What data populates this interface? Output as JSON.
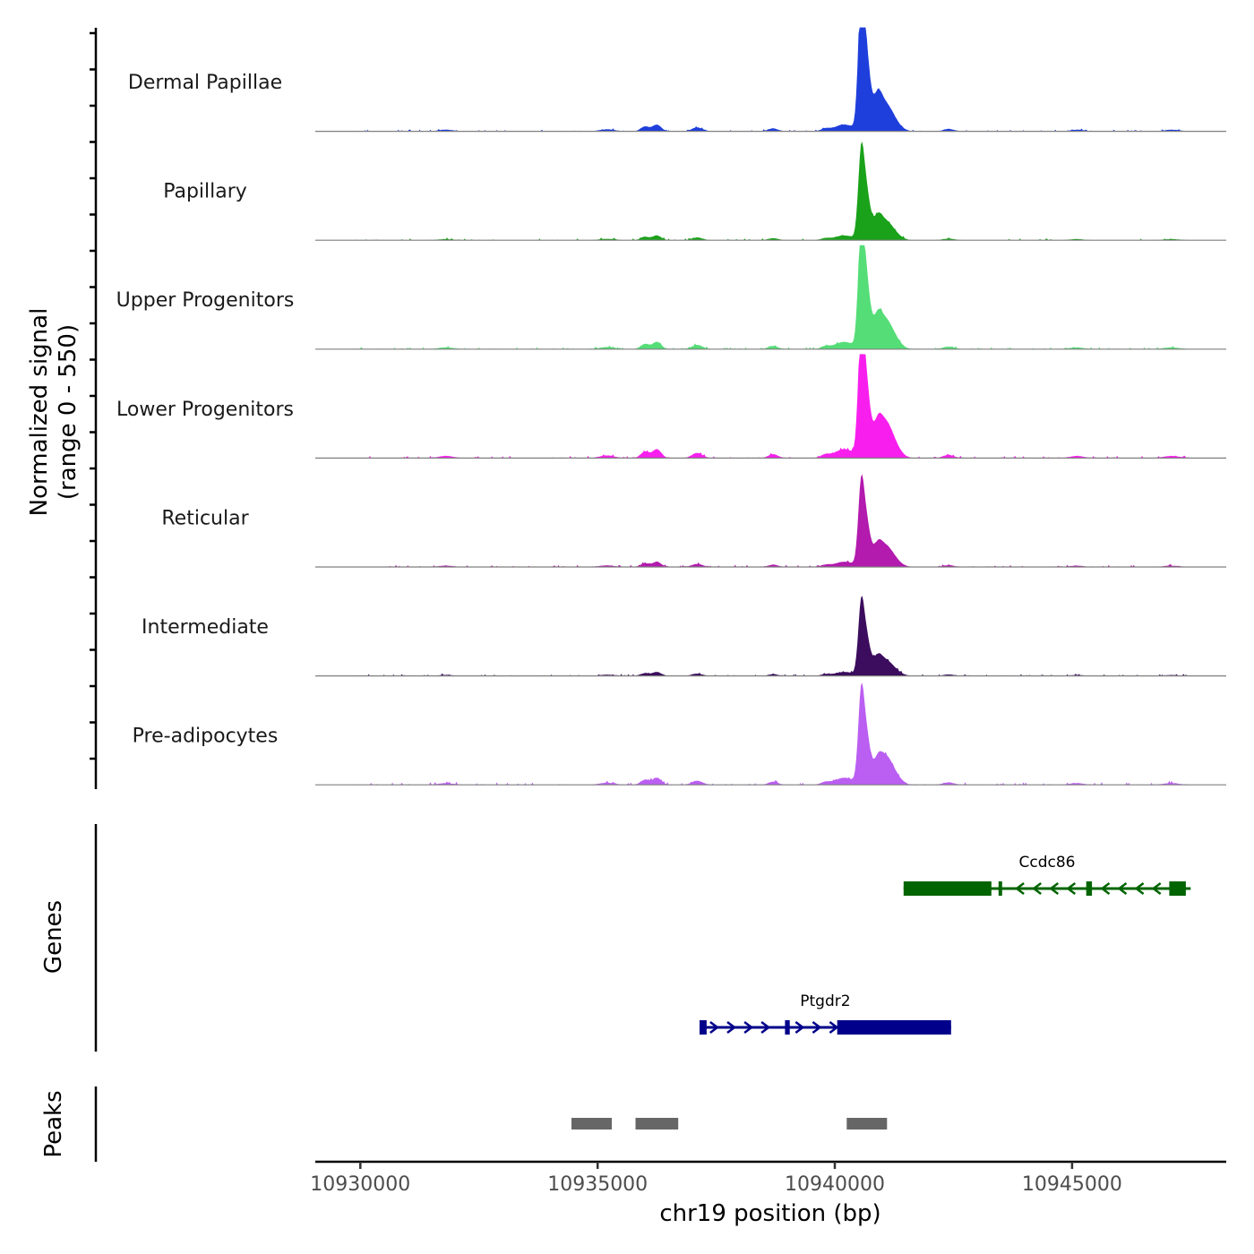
{
  "chart_data": {
    "type": "area",
    "xlabel": "chr19 position (bp)",
    "xlim": [
      10929050,
      10948250
    ],
    "x_ticks": [
      "10930000",
      "10935000",
      "10940000",
      "10945000"
    ],
    "x_tick_values": [
      10930000,
      10935000,
      10940000,
      10945000
    ],
    "y_title_line1": "Normalized signal",
    "y_title_line2": "(range 0 - 550)",
    "ylim": [
      0,
      550
    ],
    "genes_title": "Genes",
    "peaks_title": "Peaks",
    "tracks": [
      {
        "name": "Dermal Papillae",
        "color": "#1f3fdc",
        "scale": 1.0,
        "sec": 1.0
      },
      {
        "name": "Papillary",
        "color": "#1aa21a",
        "scale": 0.64,
        "sec": 1.1
      },
      {
        "name": "Upper Progenitors",
        "color": "#55dd77",
        "scale": 0.9,
        "sec": 1.2
      },
      {
        "name": "Lower Progenitors",
        "color": "#f81fee",
        "scale": 0.95,
        "sec": 1.4
      },
      {
        "name": "Reticular",
        "color": "#b31aae",
        "scale": 0.6,
        "sec": 1.3
      },
      {
        "name": "Intermediate",
        "color": "#3c0d5e",
        "scale": 0.52,
        "sec": 1.1
      },
      {
        "name": "Pre-adipocytes",
        "color": "#bb5ef2",
        "scale": 0.66,
        "sec": 1.6
      }
    ],
    "peaks_bp": [
      {
        "center": 10940550,
        "height": 550,
        "width": 60
      },
      {
        "center": 10940650,
        "height": 430,
        "width": 90
      },
      {
        "center": 10940900,
        "height": 160,
        "width": 90
      },
      {
        "center": 10941050,
        "height": 90,
        "width": 120
      },
      {
        "center": 10941200,
        "height": 70,
        "width": 150
      },
      {
        "center": 10940200,
        "height": 35,
        "width": 200
      },
      {
        "center": 10936000,
        "height": 25,
        "width": 90
      },
      {
        "center": 10936250,
        "height": 35,
        "width": 90
      },
      {
        "center": 10937100,
        "height": 20,
        "width": 110
      },
      {
        "center": 10938700,
        "height": 15,
        "width": 100
      },
      {
        "center": 10939800,
        "height": 12,
        "width": 90
      },
      {
        "center": 10942400,
        "height": 12,
        "width": 110
      },
      {
        "center": 10945100,
        "height": 8,
        "width": 140
      },
      {
        "center": 10947100,
        "height": 8,
        "width": 160
      },
      {
        "center": 10931800,
        "height": 8,
        "width": 150
      },
      {
        "center": 10935200,
        "height": 10,
        "width": 150
      }
    ],
    "genes": [
      {
        "name": "Ptgdr2",
        "strand": "+",
        "start": 10937150,
        "end": 10942450,
        "exons": [
          [
            10937150,
            10937300
          ],
          [
            10938950,
            10939050
          ],
          [
            10940050,
            10942450
          ]
        ],
        "color": "#00008b"
      },
      {
        "name": "Ccdc86",
        "strand": "-",
        "start": 10941450,
        "end": 10947500,
        "exons": [
          [
            10941450,
            10943300
          ],
          [
            10943450,
            10943500
          ],
          [
            10945300,
            10945420
          ],
          [
            10947050,
            10947400
          ]
        ],
        "color": "#006400"
      }
    ],
    "peak_regions": [
      [
        10934450,
        10935300
      ],
      [
        10935800,
        10936700
      ],
      [
        10940250,
        10941100
      ]
    ],
    "peak_region_color": "#666666"
  }
}
